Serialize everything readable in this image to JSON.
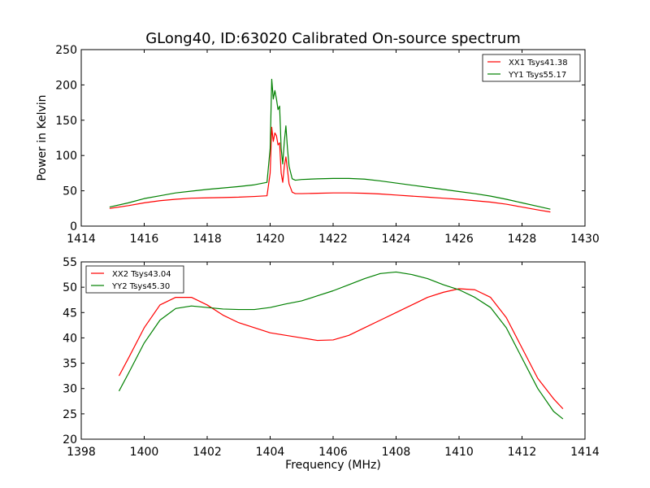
{
  "figure": {
    "title": "GLong40, ID:63020 Calibrated On-source spectrum"
  },
  "chart_data": [
    {
      "type": "line",
      "title": "GLong40, ID:63020 Calibrated On-source spectrum",
      "xlabel": "",
      "ylabel": "Power in Kelvin",
      "xlim": [
        1414,
        1430
      ],
      "ylim": [
        0,
        250
      ],
      "xticks": [
        1414,
        1416,
        1418,
        1420,
        1422,
        1424,
        1426,
        1428,
        1430
      ],
      "yticks": [
        0,
        50,
        100,
        150,
        200,
        250
      ],
      "grid": false,
      "legend": "top-right",
      "series": [
        {
          "name": "XX1 Tsys41.38",
          "color": "#ff0000",
          "x": [
            1414.9,
            1415.5,
            1416,
            1416.5,
            1417,
            1417.5,
            1418,
            1418.5,
            1419,
            1419.5,
            1419.9,
            1420.0,
            1420.05,
            1420.1,
            1420.15,
            1420.2,
            1420.25,
            1420.3,
            1420.35,
            1420.4,
            1420.45,
            1420.5,
            1420.55,
            1420.6,
            1420.7,
            1420.8,
            1421,
            1421.5,
            1422,
            1422.5,
            1423,
            1423.5,
            1424,
            1424.5,
            1425,
            1425.5,
            1426,
            1426.5,
            1427,
            1427.5,
            1428,
            1428.5,
            1428.9
          ],
          "values": [
            25,
            29,
            33,
            36,
            38,
            39.5,
            40,
            40.5,
            41,
            42,
            43,
            75,
            140,
            120,
            132,
            128,
            115,
            118,
            75,
            62,
            85,
            98,
            80,
            60,
            48,
            46,
            46,
            46.5,
            47,
            47,
            46.5,
            45.5,
            44,
            42.5,
            41,
            39.5,
            38,
            36,
            34,
            31,
            27,
            23,
            20
          ]
        },
        {
          "name": "YY1 Tsys55.17",
          "color": "#008000",
          "x": [
            1414.9,
            1415.5,
            1416,
            1416.5,
            1417,
            1417.5,
            1418,
            1418.5,
            1419,
            1419.5,
            1419.9,
            1420.0,
            1420.05,
            1420.1,
            1420.15,
            1420.2,
            1420.25,
            1420.3,
            1420.35,
            1420.4,
            1420.45,
            1420.5,
            1420.55,
            1420.6,
            1420.7,
            1420.8,
            1421,
            1421.5,
            1422,
            1422.5,
            1423,
            1423.5,
            1424,
            1424.5,
            1425,
            1425.5,
            1426,
            1426.5,
            1427,
            1427.5,
            1428,
            1428.5,
            1428.9
          ],
          "values": [
            27,
            33,
            39,
            43,
            47,
            49.5,
            52,
            54,
            56,
            58.5,
            62,
            110,
            208,
            180,
            192,
            180,
            165,
            170,
            110,
            88,
            120,
            142,
            110,
            85,
            67,
            65,
            66,
            67,
            67.5,
            67.5,
            66.5,
            64,
            61,
            58,
            55,
            52,
            49,
            46,
            42.5,
            38,
            33,
            28,
            24
          ]
        }
      ]
    },
    {
      "type": "line",
      "title": "",
      "xlabel": "Frequency (MHz)",
      "ylabel": "",
      "xlim": [
        1398,
        1414
      ],
      "ylim": [
        20,
        55
      ],
      "xticks": [
        1398,
        1400,
        1402,
        1404,
        1406,
        1408,
        1410,
        1412,
        1414
      ],
      "yticks": [
        20,
        25,
        30,
        35,
        40,
        45,
        50,
        55
      ],
      "grid": false,
      "legend": "top-left",
      "series": [
        {
          "name": "XX2 Tsys43.04",
          "color": "#ff0000",
          "x": [
            1399.2,
            1399.5,
            1400,
            1400.5,
            1401,
            1401.5,
            1402,
            1402.5,
            1403,
            1403.5,
            1404,
            1404.5,
            1405,
            1405.5,
            1406,
            1406.5,
            1407,
            1407.5,
            1408,
            1408.5,
            1409,
            1409.5,
            1410,
            1410.5,
            1411,
            1411.5,
            1412,
            1412.5,
            1413,
            1413.3
          ],
          "values": [
            32.5,
            36,
            42,
            46.5,
            48,
            48,
            46.5,
            44.5,
            43,
            42,
            41,
            40.5,
            40,
            39.5,
            39.6,
            40.5,
            42,
            43.5,
            45,
            46.5,
            48,
            49,
            49.7,
            49.5,
            48,
            44,
            38,
            32,
            28,
            26
          ]
        },
        {
          "name": "YY2 Tsys45.30",
          "color": "#008000",
          "x": [
            1399.2,
            1399.5,
            1400,
            1400.5,
            1401,
            1401.5,
            1402,
            1402.5,
            1403,
            1403.5,
            1404,
            1404.5,
            1405,
            1405.5,
            1406,
            1406.5,
            1407,
            1407.5,
            1408,
            1408.5,
            1409,
            1409.5,
            1410,
            1410.5,
            1411,
            1411.5,
            1412,
            1412.5,
            1413,
            1413.3
          ],
          "values": [
            29.5,
            33,
            39,
            43.5,
            45.8,
            46.3,
            46,
            45.7,
            45.6,
            45.6,
            46,
            46.7,
            47.3,
            48.3,
            49.3,
            50.5,
            51.7,
            52.7,
            53,
            52.5,
            51.7,
            50.5,
            49.5,
            48,
            46,
            42,
            36,
            30,
            25.5,
            24
          ]
        }
      ]
    }
  ]
}
